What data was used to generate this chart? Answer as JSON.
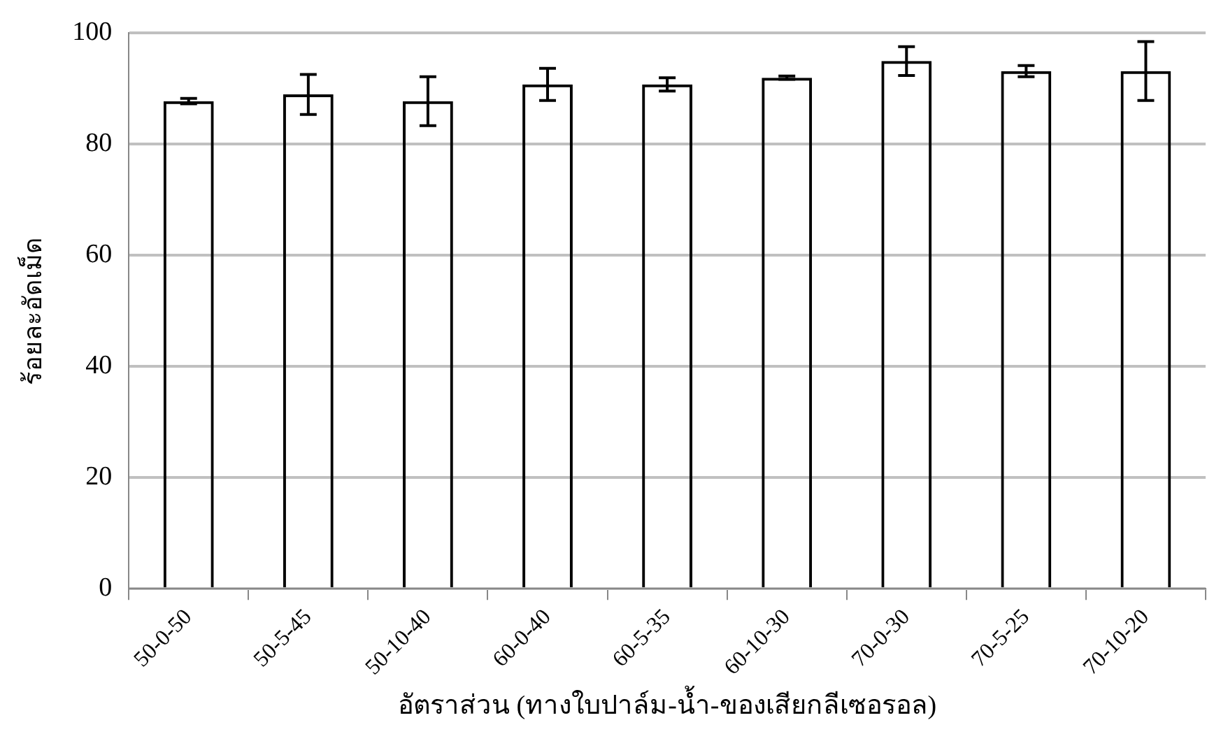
{
  "chart_data": {
    "type": "bar",
    "xlabel": "อัตราส่วน (ทางใบปาล์ม-น้ำ-ของเสียกลีเซอรอล)",
    "ylabel": "ร้อยละอัดเม็ด",
    "categories": [
      "50-0-50",
      "50-5-45",
      "50-10-40",
      "60-0-40",
      "60-5-35",
      "60-10-30",
      "70-0-30",
      "70-5-25",
      "70-10-20"
    ],
    "values": [
      87.7,
      88.9,
      87.7,
      90.7,
      90.7,
      91.9,
      94.9,
      93.1,
      93.1
    ],
    "errors": [
      0.5,
      3.6,
      4.4,
      2.9,
      1.2,
      0.3,
      2.6,
      1,
      5.3
    ],
    "color": "#000000",
    "ylim": [
      0,
      100
    ],
    "yticks": [
      0,
      20,
      40,
      60,
      80,
      100
    ],
    "grid": "y",
    "legend": false
  }
}
